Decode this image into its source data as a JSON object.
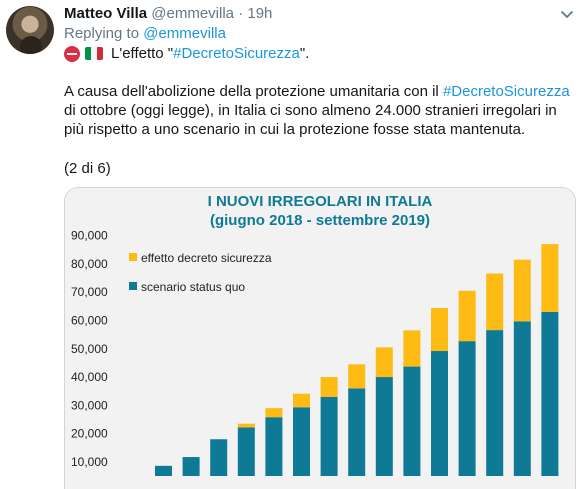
{
  "tweet": {
    "author_name": "Matteo Villa",
    "author_handle": "@emmevilla",
    "separator": "·",
    "time": "19h",
    "replying_prefix": "Replying to",
    "replying_to": "@emmevilla",
    "line1_prefix": "L'effetto \"",
    "line1_hashtag": "#DecretoSicurezza",
    "line1_suffix": "\".",
    "para_part1": "A causa dell'abolizione della protezione umanitaria con il ",
    "para_hashtag": "#DecretoSicurezza",
    "para_part2": " di ottobre (oggi legge), in Italia ci sono almeno 24.000 stranieri irregolari in più rispetto a uno scenario in cui la protezione fosse stata mantenuta.",
    "thread_count": "(2 di 6)",
    "icons": [
      "no-entry-icon",
      "italy-flag-icon",
      "chevron-down-icon",
      "avatar"
    ]
  },
  "chart_data": {
    "type": "bar",
    "stacked": true,
    "title": "I NUOVI IRREGOLARI IN ITALIA",
    "subtitle": "(giugno 2018 - settembre 2019)",
    "ytick_labels": [
      "10,000",
      "20,000",
      "30,000",
      "40,000",
      "50,000",
      "60,000",
      "70,000",
      "80,000",
      "90,000"
    ],
    "ytick_values": [
      10000,
      20000,
      30000,
      40000,
      50000,
      60000,
      70000,
      80000,
      90000
    ],
    "ylim": [
      5000,
      92000
    ],
    "grid": false,
    "legend_position": "top-left",
    "series": [
      {
        "name": "scenario status quo",
        "color": "#0e7a96",
        "values": [
          8600,
          11700,
          18000,
          22200,
          25800,
          29300,
          33000,
          36000,
          40000,
          43700,
          49200,
          52700,
          56600,
          59700,
          63000
        ]
      },
      {
        "name": "effetto decreto sicurezza",
        "color": "#fdbb13",
        "values": [
          0,
          0,
          0,
          1300,
          3200,
          4800,
          7000,
          8500,
          10500,
          12800,
          15200,
          17800,
          20000,
          21800,
          24000
        ]
      }
    ],
    "colors": {
      "background": "#f2f2f2",
      "title": "#0e7a96"
    }
  }
}
